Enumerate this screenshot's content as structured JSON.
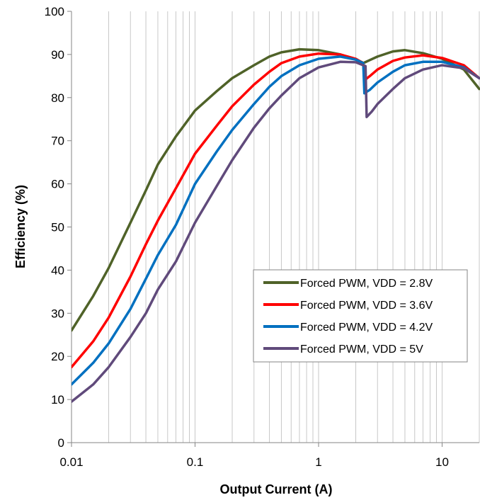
{
  "chart_data": {
    "type": "line",
    "xlabel": "Output Current (A)",
    "ylabel": "Efficiency (%)",
    "x_scale": "log",
    "xlim": [
      0.01,
      20
    ],
    "ylim": [
      0,
      100
    ],
    "x_ticks": [
      {
        "value": 0.01,
        "label": "0.01"
      },
      {
        "value": 0.1,
        "label": "0.1"
      },
      {
        "value": 1,
        "label": "1"
      },
      {
        "value": 10,
        "label": "10"
      }
    ],
    "y_ticks": [
      0,
      10,
      20,
      30,
      40,
      50,
      60,
      70,
      80,
      90,
      100
    ],
    "grid": "vertical-minor-log",
    "legend_position": "center-right",
    "series": [
      {
        "name": "Forced PWM, VDD = 2.8V",
        "color": "#4f6228",
        "points": [
          [
            0.01,
            26
          ],
          [
            0.015,
            34
          ],
          [
            0.02,
            40.5
          ],
          [
            0.03,
            51
          ],
          [
            0.04,
            58.5
          ],
          [
            0.05,
            64.5
          ],
          [
            0.07,
            71
          ],
          [
            0.1,
            77
          ],
          [
            0.15,
            81.5
          ],
          [
            0.2,
            84.5
          ],
          [
            0.3,
            87.5
          ],
          [
            0.4,
            89.5
          ],
          [
            0.5,
            90.5
          ],
          [
            0.7,
            91.2
          ],
          [
            1,
            91
          ],
          [
            1.5,
            90
          ],
          [
            2,
            88.8
          ],
          [
            2.25,
            88.2
          ],
          [
            2.3,
            88
          ],
          [
            2.6,
            88.7
          ],
          [
            3,
            89.5
          ],
          [
            4,
            90.7
          ],
          [
            5,
            91
          ],
          [
            7,
            90.3
          ],
          [
            10,
            89
          ],
          [
            15,
            86.5
          ],
          [
            20,
            82
          ]
        ]
      },
      {
        "name": "Forced PWM, VDD = 3.6V",
        "color": "#ff0000",
        "points": [
          [
            0.01,
            17.5
          ],
          [
            0.015,
            23.5
          ],
          [
            0.02,
            29
          ],
          [
            0.03,
            38.5
          ],
          [
            0.04,
            46
          ],
          [
            0.05,
            51.5
          ],
          [
            0.07,
            59
          ],
          [
            0.1,
            67
          ],
          [
            0.15,
            73.5
          ],
          [
            0.2,
            78
          ],
          [
            0.3,
            83
          ],
          [
            0.4,
            86
          ],
          [
            0.5,
            88
          ],
          [
            0.7,
            89.5
          ],
          [
            1,
            90.2
          ],
          [
            1.5,
            90
          ],
          [
            2,
            89
          ],
          [
            2.3,
            88
          ],
          [
            2.35,
            84
          ],
          [
            2.6,
            85
          ],
          [
            3,
            86.5
          ],
          [
            4,
            88.5
          ],
          [
            5,
            89.3
          ],
          [
            7,
            89.8
          ],
          [
            10,
            89.2
          ],
          [
            15,
            87.5
          ],
          [
            20,
            84.5
          ]
        ]
      },
      {
        "name": "Forced PWM, VDD = 4.2V",
        "color": "#0070c0",
        "points": [
          [
            0.01,
            13.5
          ],
          [
            0.015,
            18.5
          ],
          [
            0.02,
            23
          ],
          [
            0.03,
            31
          ],
          [
            0.04,
            38
          ],
          [
            0.05,
            43.5
          ],
          [
            0.07,
            50.5
          ],
          [
            0.1,
            60
          ],
          [
            0.15,
            67.5
          ],
          [
            0.2,
            72.5
          ],
          [
            0.3,
            78.5
          ],
          [
            0.4,
            82.5
          ],
          [
            0.5,
            85
          ],
          [
            0.7,
            87.5
          ],
          [
            1,
            89
          ],
          [
            1.5,
            89.5
          ],
          [
            2,
            88.8
          ],
          [
            2.3,
            88
          ],
          [
            2.35,
            81
          ],
          [
            2.6,
            81.8
          ],
          [
            3,
            83.5
          ],
          [
            4,
            86
          ],
          [
            5,
            87.5
          ],
          [
            7,
            88.3
          ],
          [
            10,
            88.3
          ],
          [
            15,
            87
          ],
          [
            20,
            84.5
          ]
        ]
      },
      {
        "name": "Forced PWM, VDD = 5V",
        "color": "#604a7b",
        "points": [
          [
            0.01,
            9.5
          ],
          [
            0.015,
            13.5
          ],
          [
            0.02,
            17.5
          ],
          [
            0.03,
            24.5
          ],
          [
            0.04,
            30
          ],
          [
            0.05,
            35.5
          ],
          [
            0.07,
            42
          ],
          [
            0.1,
            51
          ],
          [
            0.15,
            59.5
          ],
          [
            0.2,
            65.5
          ],
          [
            0.3,
            73
          ],
          [
            0.4,
            77.5
          ],
          [
            0.5,
            80.5
          ],
          [
            0.7,
            84.5
          ],
          [
            1,
            87
          ],
          [
            1.5,
            88.3
          ],
          [
            2,
            88.2
          ],
          [
            2.3,
            87.5
          ],
          [
            2.4,
            87.3
          ],
          [
            2.45,
            75.5
          ],
          [
            2.7,
            76.8
          ],
          [
            3,
            78.5
          ],
          [
            4,
            82
          ],
          [
            5,
            84.5
          ],
          [
            7,
            86.5
          ],
          [
            10,
            87.5
          ],
          [
            15,
            86.8
          ],
          [
            20,
            84.5
          ]
        ]
      }
    ]
  }
}
